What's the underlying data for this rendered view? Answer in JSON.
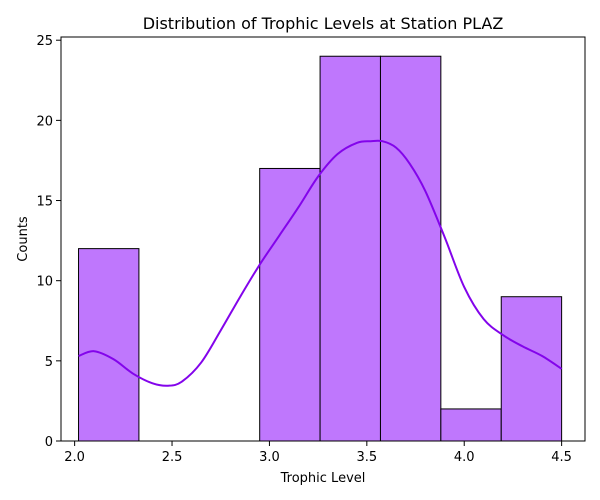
{
  "chart_data": {
    "type": "bar",
    "title": "Distribution of Trophic Levels at Station PLAZ",
    "xlabel": "Trophic Level",
    "ylabel": "Counts",
    "xlim": [
      1.93,
      4.62
    ],
    "ylim": [
      0,
      25.2
    ],
    "xticks": [
      2.0,
      2.5,
      3.0,
      3.5,
      4.0,
      4.5
    ],
    "xtick_labels": [
      "2.0",
      "2.5",
      "3.0",
      "3.5",
      "4.0",
      "4.5"
    ],
    "yticks": [
      0,
      5,
      10,
      15,
      20,
      25
    ],
    "ytick_labels": [
      "0",
      "5",
      "10",
      "15",
      "20",
      "25"
    ],
    "bins": [
      {
        "x0": 2.02,
        "x1": 2.33,
        "count": 12
      },
      {
        "x0": 2.33,
        "x1": 2.64,
        "count": 0
      },
      {
        "x0": 2.64,
        "x1": 2.95,
        "count": 0
      },
      {
        "x0": 2.95,
        "x1": 3.26,
        "count": 17
      },
      {
        "x0": 3.26,
        "x1": 3.57,
        "count": 24
      },
      {
        "x0": 3.57,
        "x1": 3.88,
        "count": 24
      },
      {
        "x0": 3.88,
        "x1": 4.19,
        "count": 2
      },
      {
        "x0": 4.19,
        "x1": 4.5,
        "count": 9
      }
    ],
    "kde": {
      "x": [
        2.02,
        2.1,
        2.2,
        2.3,
        2.4,
        2.48,
        2.55,
        2.65,
        2.75,
        2.85,
        2.95,
        3.05,
        3.15,
        3.25,
        3.35,
        3.45,
        3.52,
        3.58,
        3.65,
        3.72,
        3.8,
        3.9,
        4.0,
        4.1,
        4.2,
        4.3,
        4.4,
        4.5
      ],
      "y": [
        5.3,
        5.6,
        5.1,
        4.2,
        3.6,
        3.45,
        3.7,
        4.9,
        6.9,
        9.0,
        11.0,
        12.8,
        14.6,
        16.5,
        17.9,
        18.6,
        18.7,
        18.7,
        18.3,
        17.3,
        15.6,
        12.7,
        9.6,
        7.6,
        6.6,
        5.9,
        5.3,
        4.5
      ]
    },
    "grid": false,
    "colors": {
      "bar_fill": "#bf77fd",
      "bar_edge": "#000000",
      "kde_line": "#8304eb"
    }
  }
}
